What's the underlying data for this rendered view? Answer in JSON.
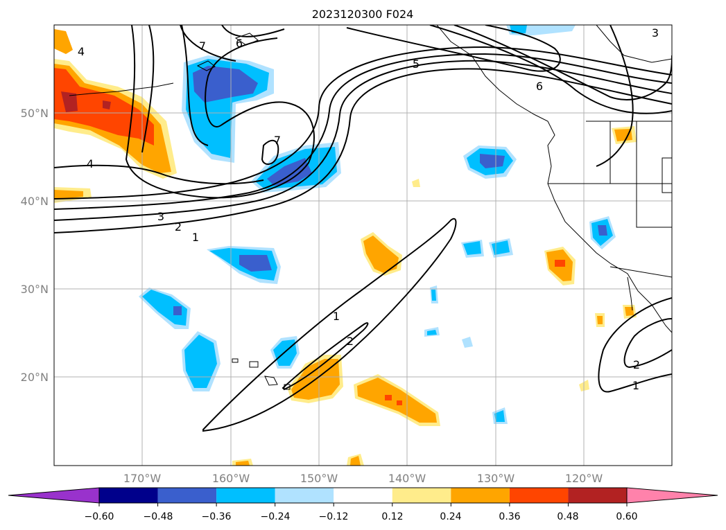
{
  "title": "2023120300 F024",
  "lat_labels": [
    "50°N",
    "40°N",
    "30°N",
    "20°N"
  ],
  "lon_labels": [
    "170°W",
    "160°W",
    "150°W",
    "140°W",
    "130°W",
    "120°W"
  ],
  "colorbar": {
    "tick_labels": [
      "−0.60",
      "−0.48",
      "−0.36",
      "−0.24",
      "−0.12",
      "0.12",
      "0.24",
      "0.36",
      "0.48",
      "0.60"
    ],
    "colors": [
      "#9932cc",
      "#00008b",
      "#3a5fcd",
      "#00bfff",
      "#b0e2ff",
      "#ffffff",
      "#ffec8b",
      "#ffa500",
      "#ff4500",
      "#b22222",
      "#ff82ab"
    ]
  },
  "contour_labels": {
    "c1": "1",
    "c2": "2",
    "c3": "3",
    "c4a": "4",
    "c4b": "4",
    "c5": "5",
    "c6a": "6",
    "c6b": "6",
    "c7a": "7",
    "c7b": "7",
    "c1b": "1",
    "c2b": "2",
    "c1c": "1",
    "c2c": "2",
    "c3b": "3"
  }
}
